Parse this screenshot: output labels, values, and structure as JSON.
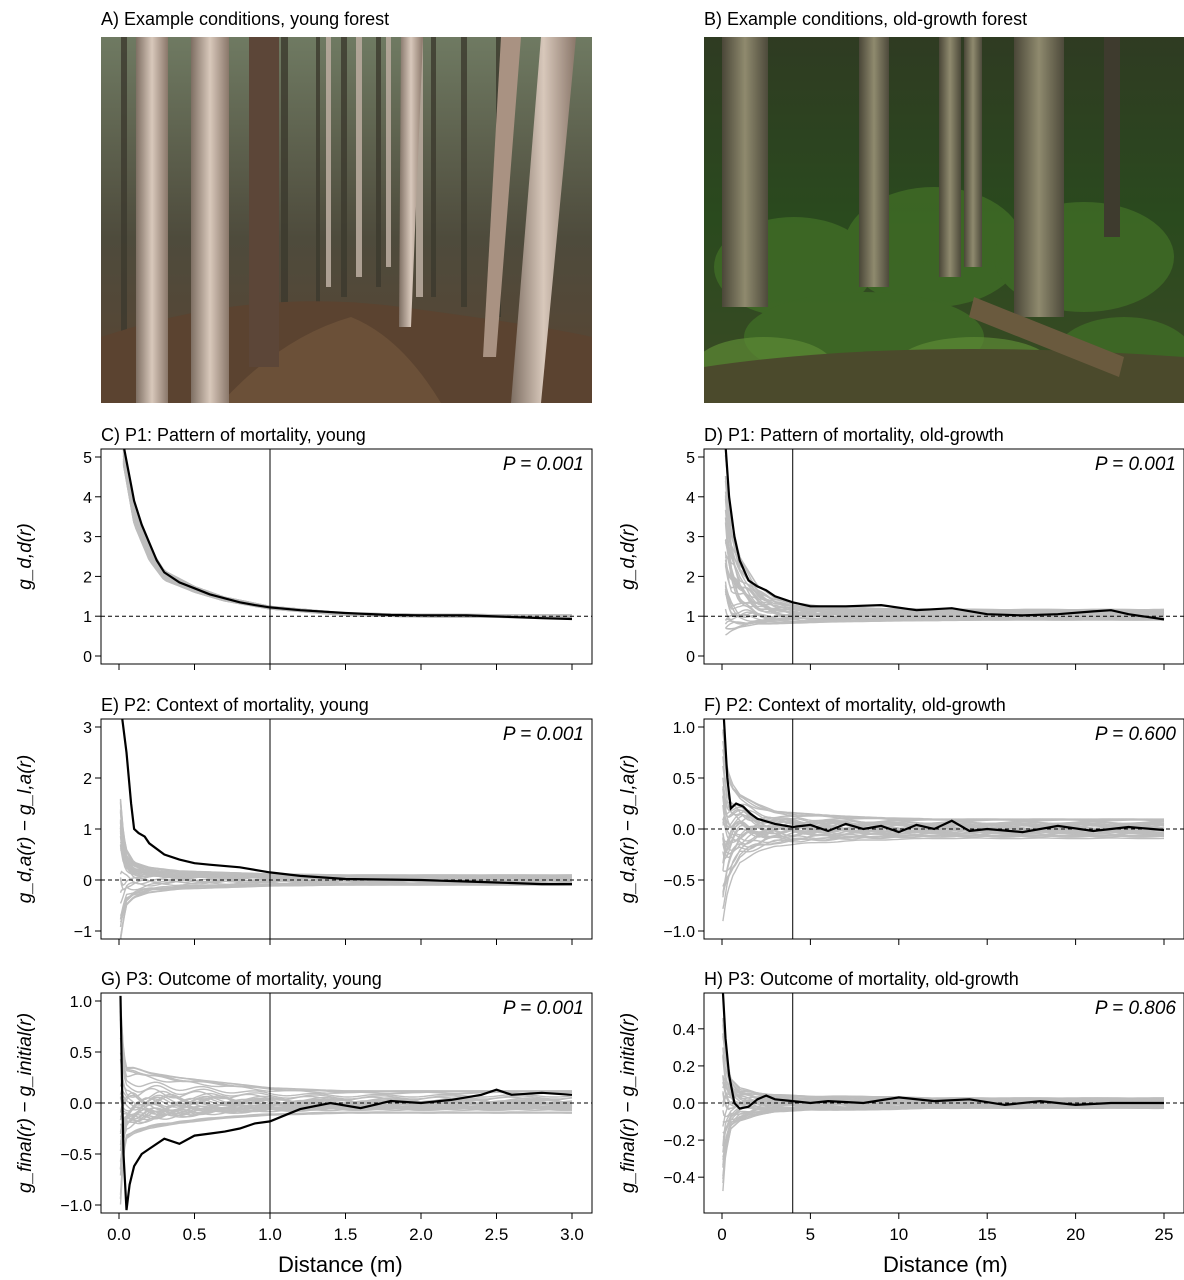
{
  "photos": [
    {
      "title": "A) Example conditions, young forest"
    },
    {
      "title": "B) Example conditions, old-growth forest"
    }
  ],
  "x_axis_labels": [
    "Distance (m)",
    "Distance (m)"
  ],
  "colors": {
    "observed": "#000000",
    "envelope": "#bdbdbd",
    "reference": "#000000"
  },
  "chart_data": [
    {
      "id": "C",
      "type": "line",
      "title": "C) P1: Pattern of mortality, young",
      "ylabel": "g_d,d(r)",
      "p_label": "P = 0.001",
      "xlim": [
        0,
        3
      ],
      "ylim": [
        0,
        5
      ],
      "xticks": [
        0,
        0.5,
        1,
        1.5,
        2,
        2.5,
        3
      ],
      "xtick_labels": [
        "0.0",
        "0.5",
        "1.0",
        "1.5",
        "2.0",
        "2.5",
        "3.0"
      ],
      "yticks": [
        0,
        1,
        2,
        3,
        4,
        5
      ],
      "ytick_labels": [
        "0",
        "1",
        "2",
        "3",
        "4",
        "5"
      ],
      "reference_line": 1,
      "vertical_line": 1,
      "observed": {
        "x": [
          0.03,
          0.05,
          0.08,
          0.1,
          0.15,
          0.2,
          0.25,
          0.3,
          0.4,
          0.5,
          0.6,
          0.7,
          0.8,
          0.9,
          1.0,
          1.2,
          1.5,
          1.8,
          2.0,
          2.3,
          2.6,
          2.8,
          3.0
        ],
        "y": [
          5.3,
          4.9,
          4.3,
          3.9,
          3.3,
          2.85,
          2.4,
          2.1,
          1.85,
          1.7,
          1.55,
          1.45,
          1.35,
          1.28,
          1.22,
          1.15,
          1.08,
          1.03,
          1.02,
          1.02,
          0.98,
          0.95,
          0.93
        ]
      },
      "envelope": {
        "x": [
          0.03,
          0.1,
          0.2,
          0.3,
          0.5,
          0.7,
          1.0,
          1.5,
          2.0,
          2.5,
          3.0
        ],
        "upper": [
          5.2,
          3.8,
          2.75,
          2.15,
          1.75,
          1.48,
          1.25,
          1.08,
          1.05,
          1.04,
          1.03
        ],
        "lower": [
          4.8,
          3.3,
          2.4,
          1.9,
          1.6,
          1.38,
          1.18,
          1.02,
          0.98,
          0.97,
          0.96
        ]
      }
    },
    {
      "id": "D",
      "type": "line",
      "title": "D) P1: Pattern of mortality, old-growth",
      "ylabel": "g_d,d(r)",
      "p_label": "P = 0.001",
      "xlim": [
        0,
        25
      ],
      "ylim": [
        0,
        5
      ],
      "xticks": [
        0,
        5,
        10,
        15,
        20,
        25
      ],
      "xtick_labels": [
        "0",
        "5",
        "10",
        "15",
        "20",
        "25"
      ],
      "yticks": [
        0,
        1,
        2,
        3,
        4,
        5
      ],
      "ytick_labels": [
        "0",
        "1",
        "2",
        "3",
        "4",
        "5"
      ],
      "reference_line": 1,
      "vertical_line": 4,
      "observed": {
        "x": [
          0.2,
          0.4,
          0.7,
          1,
          1.5,
          2,
          2.5,
          3,
          4,
          5,
          7,
          9,
          11,
          13,
          15,
          17,
          19,
          21,
          22,
          23,
          25
        ],
        "y": [
          5.3,
          4,
          3,
          2.4,
          1.9,
          1.75,
          1.65,
          1.5,
          1.35,
          1.25,
          1.25,
          1.28,
          1.15,
          1.2,
          1.05,
          1.02,
          1.05,
          1.12,
          1.15,
          1.05,
          0.92
        ]
      },
      "envelope": {
        "x": [
          0.2,
          0.5,
          1,
          2,
          3,
          4,
          6,
          10,
          15,
          20,
          25
        ],
        "upper": [
          5.2,
          3.6,
          2.6,
          1.8,
          1.5,
          1.35,
          1.25,
          1.2,
          1.18,
          1.18,
          1.18
        ],
        "lower": [
          0.5,
          0.6,
          0.7,
          0.8,
          0.8,
          0.82,
          0.85,
          0.88,
          0.9,
          0.9,
          0.9
        ]
      }
    },
    {
      "id": "E",
      "type": "line",
      "title": "E) P2: Context of mortality, young",
      "ylabel": "g_d,a(r) − g_l,a(r)",
      "p_label": "P = 0.001",
      "xlim": [
        0,
        3
      ],
      "ylim": [
        -1,
        3
      ],
      "xticks": [
        0,
        0.5,
        1,
        1.5,
        2,
        2.5,
        3
      ],
      "xtick_labels": [
        "0.0",
        "0.5",
        "1.0",
        "1.5",
        "2.0",
        "2.5",
        "3.0"
      ],
      "yticks": [
        -1,
        0,
        1,
        2,
        3
      ],
      "ytick_labels": [
        "−1",
        "0",
        "1",
        "2",
        "3"
      ],
      "reference_line": 0,
      "vertical_line": 1,
      "observed": {
        "x": [
          0.02,
          0.05,
          0.08,
          0.1,
          0.13,
          0.17,
          0.2,
          0.3,
          0.4,
          0.5,
          0.6,
          0.8,
          1.0,
          1.2,
          1.5,
          2.0,
          2.5,
          2.8,
          3.0
        ],
        "y": [
          3.2,
          2.5,
          1.5,
          1.0,
          0.92,
          0.85,
          0.72,
          0.5,
          0.4,
          0.33,
          0.3,
          0.25,
          0.15,
          0.08,
          0.02,
          0.0,
          -0.05,
          -0.08,
          -0.08
        ]
      },
      "envelope": {
        "x": [
          0.01,
          0.03,
          0.05,
          0.1,
          0.2,
          0.4,
          0.7,
          1.0,
          1.5,
          2.0,
          3.0
        ],
        "upper": [
          1.6,
          0.9,
          0.6,
          0.35,
          0.25,
          0.18,
          0.15,
          0.12,
          0.1,
          0.1,
          0.1
        ],
        "lower": [
          -1.2,
          -0.8,
          -0.5,
          -0.35,
          -0.25,
          -0.18,
          -0.15,
          -0.12,
          -0.1,
          -0.1,
          -0.1
        ]
      }
    },
    {
      "id": "F",
      "type": "line",
      "title": "F) P2: Context of mortality, old-growth",
      "ylabel": "g_d,a(r) − g_l,a(r)",
      "p_label": "P = 0.600",
      "xlim": [
        0,
        25
      ],
      "ylim": [
        -1,
        1
      ],
      "xticks": [
        0,
        5,
        10,
        15,
        20,
        25
      ],
      "xtick_labels": [
        "0",
        "5",
        "10",
        "15",
        "20",
        "25"
      ],
      "yticks": [
        -1,
        -0.5,
        0,
        0.5,
        1
      ],
      "ytick_labels": [
        "−1.0",
        "−0.5",
        "0.0",
        "0.5",
        "1.0"
      ],
      "reference_line": 0,
      "vertical_line": 4,
      "observed": {
        "x": [
          0.1,
          0.3,
          0.5,
          0.8,
          1.2,
          1.6,
          2,
          3,
          4,
          5,
          6,
          7,
          8,
          9,
          10,
          11,
          12,
          13,
          14,
          15,
          17,
          19,
          21,
          23,
          25
        ],
        "y": [
          1.1,
          0.5,
          0.2,
          0.25,
          0.22,
          0.15,
          0.1,
          0.05,
          0.02,
          0.04,
          -0.02,
          0.05,
          0.0,
          0.03,
          -0.03,
          0.04,
          0.0,
          0.08,
          -0.02,
          0.0,
          -0.03,
          0.03,
          -0.02,
          0.02,
          -0.01
        ]
      },
      "envelope": {
        "x": [
          0.05,
          0.3,
          0.6,
          1,
          2,
          3,
          5,
          8,
          12,
          18,
          25
        ],
        "upper": [
          1.0,
          0.6,
          0.45,
          0.35,
          0.25,
          0.18,
          0.15,
          0.12,
          0.1,
          0.1,
          0.1
        ],
        "lower": [
          -1.0,
          -0.7,
          -0.5,
          -0.35,
          -0.25,
          -0.18,
          -0.15,
          -0.12,
          -0.1,
          -0.1,
          -0.1
        ]
      }
    },
    {
      "id": "G",
      "type": "line",
      "title": "G) P3: Outcome of mortality, young",
      "ylabel": "g_final(r) − g_initial(r)",
      "p_label": "P = 0.001",
      "xlim": [
        0,
        3
      ],
      "ylim": [
        -1,
        1
      ],
      "xticks": [
        0,
        0.5,
        1,
        1.5,
        2,
        2.5,
        3
      ],
      "xtick_labels": [
        "0.0",
        "0.5",
        "1.0",
        "1.5",
        "2.0",
        "2.5",
        "3.0"
      ],
      "yticks": [
        -1,
        -0.5,
        0,
        0.5,
        1
      ],
      "ytick_labels": [
        "−1.0",
        "−0.5",
        "0.0",
        "0.5",
        "1.0"
      ],
      "reference_line": 0,
      "vertical_line": 1,
      "observed": {
        "x": [
          0.01,
          0.02,
          0.03,
          0.05,
          0.07,
          0.1,
          0.15,
          0.2,
          0.3,
          0.4,
          0.5,
          0.6,
          0.7,
          0.8,
          0.9,
          1.0,
          1.1,
          1.2,
          1.4,
          1.6,
          1.8,
          2.0,
          2.2,
          2.4,
          2.5,
          2.6,
          2.8,
          3.0
        ],
        "y": [
          1.05,
          0.2,
          -0.5,
          -1.05,
          -0.8,
          -0.62,
          -0.5,
          -0.45,
          -0.35,
          -0.4,
          -0.32,
          -0.3,
          -0.28,
          -0.25,
          -0.2,
          -0.18,
          -0.12,
          -0.06,
          0.0,
          -0.05,
          0.02,
          0.0,
          0.03,
          0.08,
          0.13,
          0.08,
          0.1,
          0.08
        ]
      },
      "envelope": {
        "x": [
          0.01,
          0.03,
          0.05,
          0.1,
          0.2,
          0.4,
          0.7,
          1.0,
          1.5,
          2.0,
          3.0
        ],
        "upper": [
          1.0,
          0.5,
          0.35,
          0.35,
          0.3,
          0.25,
          0.2,
          0.15,
          0.12,
          0.12,
          0.12
        ],
        "lower": [
          -1.0,
          -0.5,
          -0.35,
          -0.3,
          -0.25,
          -0.2,
          -0.15,
          -0.12,
          -0.1,
          -0.1,
          -0.1
        ]
      }
    },
    {
      "id": "H",
      "type": "line",
      "title": "H) P3: Outcome of mortality, old-growth",
      "ylabel": "g_final(r) − g_initial(r)",
      "p_label": "P = 0.806",
      "xlim": [
        0,
        25
      ],
      "ylim": [
        -0.55,
        0.55
      ],
      "xticks": [
        0,
        5,
        10,
        15,
        20,
        25
      ],
      "xtick_labels": [
        "0",
        "5",
        "10",
        "15",
        "20",
        "25"
      ],
      "yticks": [
        -0.4,
        -0.2,
        0,
        0.2,
        0.4
      ],
      "ytick_labels": [
        "−0.4",
        "−0.2",
        "0.0",
        "0.2",
        "0.4"
      ],
      "reference_line": 0,
      "vertical_line": 4,
      "observed": {
        "x": [
          0.05,
          0.2,
          0.4,
          0.7,
          1.0,
          1.5,
          2,
          2.5,
          3,
          4,
          5,
          6,
          8,
          10,
          12,
          14,
          16,
          18,
          20,
          22,
          24,
          25
        ],
        "y": [
          0.6,
          0.35,
          0.15,
          0.0,
          -0.03,
          -0.02,
          0.02,
          0.04,
          0.02,
          0.01,
          0.0,
          0.01,
          0.0,
          0.03,
          0.01,
          0.02,
          -0.01,
          0.01,
          -0.01,
          0.0,
          0.0,
          0.0
        ]
      },
      "envelope": {
        "x": [
          0.05,
          0.2,
          0.5,
          1,
          2,
          3,
          5,
          8,
          12,
          18,
          25
        ],
        "upper": [
          0.5,
          0.3,
          0.15,
          0.09,
          0.06,
          0.05,
          0.04,
          0.04,
          0.03,
          0.03,
          0.03
        ],
        "lower": [
          -0.5,
          -0.3,
          -0.15,
          -0.1,
          -0.07,
          -0.05,
          -0.04,
          -0.04,
          -0.03,
          -0.03,
          -0.03
        ]
      }
    }
  ]
}
